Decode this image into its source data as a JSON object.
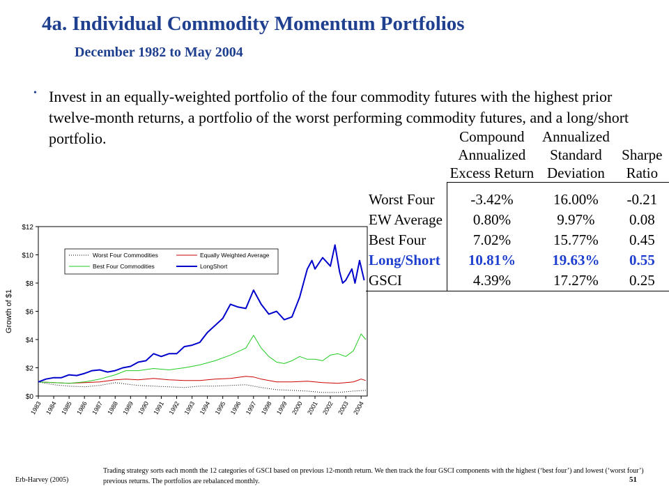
{
  "header": {
    "title": "4a. Individual Commodity Momentum Portfolios",
    "subtitle": "December 1982 to May 2004"
  },
  "bullet": "Invest in an equally-weighted portfolio of the four commodity futures with the highest prior twelve-month returns, a portfolio of the worst performing commodity futures, and a long/short portfolio.",
  "table": {
    "header_rows": [
      [
        "Compound",
        "Annualized",
        ""
      ],
      [
        "Annualized",
        "Standard",
        "Sharpe"
      ],
      [
        "Excess Return",
        "Deviation",
        "Ratio"
      ]
    ],
    "rows": [
      {
        "label": "Worst Four",
        "ret": "-3.42%",
        "sd": "16.00%",
        "sharpe": "-0.21"
      },
      {
        "label": "EW Average",
        "ret": "0.80%",
        "sd": "9.97%",
        "sharpe": "0.08"
      },
      {
        "label": "Best Four",
        "ret": "7.02%",
        "sd": "15.77%",
        "sharpe": "0.45"
      },
      {
        "label": "Long/Short",
        "ret": "10.81%",
        "sd": "19.63%",
        "sharpe": "0.55"
      },
      {
        "label": "GSCI",
        "ret": "4.39%",
        "sd": "17.27%",
        "sharpe": "0.25"
      }
    ],
    "highlight_color": "#1f3fcf"
  },
  "chart_data": {
    "type": "line",
    "ylabel": "Growth of $1",
    "ylim": [
      0,
      12
    ],
    "yticks": [
      "$0",
      "$2",
      "$4",
      "$6",
      "$8",
      "$10",
      "$12"
    ],
    "xlim": [
      1983,
      2004.4
    ],
    "xticks": [
      "1983",
      "1984",
      "1985",
      "1986",
      "1987",
      "1988",
      "1989",
      "1990",
      "1991",
      "1992",
      "1993",
      "1994",
      "1995",
      "1996",
      "1997",
      "1998",
      "1999",
      "2000",
      "2001",
      "2002",
      "2003",
      "2004"
    ],
    "legend_position": "top-left",
    "series": [
      {
        "name": "Worst Four Commodities",
        "color": "#000000",
        "dash": "1,2",
        "width": 1,
        "points": [
          [
            1983.0,
            1.0
          ],
          [
            1984.0,
            0.8
          ],
          [
            1985.0,
            0.7
          ],
          [
            1986.0,
            0.65
          ],
          [
            1987.0,
            0.75
          ],
          [
            1988.0,
            0.95
          ],
          [
            1988.7,
            0.85
          ],
          [
            1989.5,
            0.75
          ],
          [
            1990.5,
            0.7
          ],
          [
            1991.5,
            0.65
          ],
          [
            1992.5,
            0.6
          ],
          [
            1993.5,
            0.7
          ],
          [
            1994.5,
            0.7
          ],
          [
            1995.5,
            0.75
          ],
          [
            1996.5,
            0.8
          ],
          [
            1997.5,
            0.6
          ],
          [
            1998.5,
            0.45
          ],
          [
            1999.5,
            0.4
          ],
          [
            2000.5,
            0.35
          ],
          [
            2001.0,
            0.3
          ],
          [
            2001.5,
            0.25
          ],
          [
            2002.5,
            0.25
          ],
          [
            2003.0,
            0.3
          ],
          [
            2003.5,
            0.35
          ],
          [
            2004.3,
            0.4
          ]
        ]
      },
      {
        "name": "Equally Weighted Average",
        "color": "#cc0000",
        "dash": "",
        "width": 1,
        "points": [
          [
            1983.0,
            1.0
          ],
          [
            1984.0,
            0.95
          ],
          [
            1985.0,
            0.9
          ],
          [
            1986.0,
            0.95
          ],
          [
            1987.0,
            1.0
          ],
          [
            1988.0,
            1.15
          ],
          [
            1988.7,
            1.2
          ],
          [
            1989.5,
            1.15
          ],
          [
            1990.5,
            1.25
          ],
          [
            1991.5,
            1.15
          ],
          [
            1992.5,
            1.1
          ],
          [
            1993.5,
            1.1
          ],
          [
            1994.5,
            1.2
          ],
          [
            1995.5,
            1.25
          ],
          [
            1996.5,
            1.4
          ],
          [
            1997.0,
            1.35
          ],
          [
            1997.5,
            1.2
          ],
          [
            1998.5,
            1.0
          ],
          [
            1999.5,
            1.0
          ],
          [
            2000.5,
            1.05
          ],
          [
            2001.5,
            0.95
          ],
          [
            2002.5,
            0.9
          ],
          [
            2003.5,
            1.0
          ],
          [
            2004.0,
            1.2
          ],
          [
            2004.3,
            1.1
          ]
        ]
      },
      {
        "name": "Best Four Commodities",
        "color": "#22cc22",
        "dash": "",
        "width": 1,
        "points": [
          [
            1983.0,
            1.0
          ],
          [
            1984.0,
            0.95
          ],
          [
            1985.0,
            0.9
          ],
          [
            1986.0,
            1.0
          ],
          [
            1987.0,
            1.2
          ],
          [
            1988.0,
            1.5
          ],
          [
            1988.7,
            1.8
          ],
          [
            1989.5,
            1.8
          ],
          [
            1990.5,
            1.95
          ],
          [
            1991.5,
            1.85
          ],
          [
            1992.5,
            2.0
          ],
          [
            1993.5,
            2.2
          ],
          [
            1994.5,
            2.5
          ],
          [
            1995.5,
            2.9
          ],
          [
            1996.5,
            3.4
          ],
          [
            1997.0,
            4.3
          ],
          [
            1997.5,
            3.4
          ],
          [
            1998.0,
            2.8
          ],
          [
            1998.5,
            2.4
          ],
          [
            1999.0,
            2.3
          ],
          [
            1999.5,
            2.5
          ],
          [
            2000.0,
            2.8
          ],
          [
            2000.5,
            2.6
          ],
          [
            2001.0,
            2.6
          ],
          [
            2001.5,
            2.5
          ],
          [
            2002.0,
            2.9
          ],
          [
            2002.5,
            3.0
          ],
          [
            2003.0,
            2.8
          ],
          [
            2003.5,
            3.2
          ],
          [
            2004.0,
            4.4
          ],
          [
            2004.3,
            4.0
          ]
        ]
      },
      {
        "name": "LongShort",
        "color": "#0000cc",
        "dash": "",
        "width": 2,
        "points": [
          [
            1983.0,
            1.0
          ],
          [
            1983.5,
            1.2
          ],
          [
            1984.0,
            1.3
          ],
          [
            1984.5,
            1.3
          ],
          [
            1985.0,
            1.5
          ],
          [
            1985.5,
            1.45
          ],
          [
            1986.0,
            1.6
          ],
          [
            1986.5,
            1.8
          ],
          [
            1987.0,
            1.85
          ],
          [
            1987.5,
            1.7
          ],
          [
            1988.0,
            1.8
          ],
          [
            1988.5,
            2.0
          ],
          [
            1989.0,
            2.1
          ],
          [
            1989.5,
            2.4
          ],
          [
            1990.0,
            2.5
          ],
          [
            1990.5,
            3.0
          ],
          [
            1991.0,
            2.8
          ],
          [
            1991.5,
            3.0
          ],
          [
            1992.0,
            3.0
          ],
          [
            1992.5,
            3.5
          ],
          [
            1993.0,
            3.6
          ],
          [
            1993.5,
            3.8
          ],
          [
            1994.0,
            4.5
          ],
          [
            1994.5,
            5.0
          ],
          [
            1995.0,
            5.5
          ],
          [
            1995.5,
            6.5
          ],
          [
            1996.0,
            6.3
          ],
          [
            1996.5,
            6.2
          ],
          [
            1997.0,
            7.5
          ],
          [
            1997.5,
            6.5
          ],
          [
            1998.0,
            5.8
          ],
          [
            1998.5,
            6.0
          ],
          [
            1999.0,
            5.4
          ],
          [
            1999.5,
            5.6
          ],
          [
            2000.0,
            7.0
          ],
          [
            2000.5,
            9.0
          ],
          [
            2000.8,
            9.6
          ],
          [
            2001.0,
            9.0
          ],
          [
            2001.5,
            9.8
          ],
          [
            2002.0,
            9.2
          ],
          [
            2002.3,
            10.7
          ],
          [
            2002.6,
            8.8
          ],
          [
            2002.8,
            8.0
          ],
          [
            2003.0,
            8.2
          ],
          [
            2003.4,
            9.0
          ],
          [
            2003.6,
            8.0
          ],
          [
            2003.9,
            9.6
          ],
          [
            2004.2,
            8.2
          ]
        ]
      }
    ]
  },
  "footer": {
    "credit": "Erb-Harvey (2005)",
    "note": "Trading strategy sorts each month the 12 categories of GSCI based on previous 12-month return. We then track the four GSCI components with the highest (‘best four’) and lowest (‘worst four’) previous returns. The portfolios are rebalanced monthly.",
    "page": "51"
  }
}
